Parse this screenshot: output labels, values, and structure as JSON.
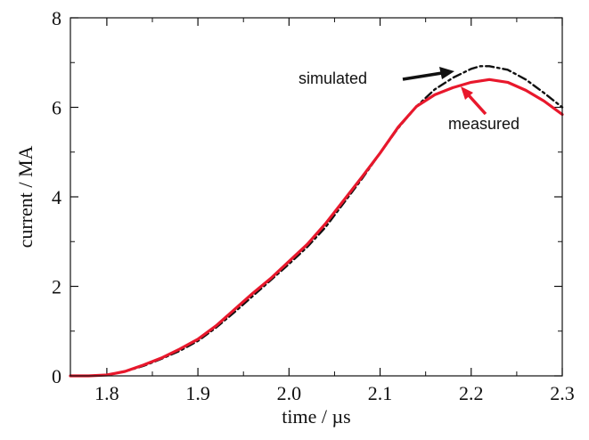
{
  "chart_data": {
    "type": "line",
    "title": "",
    "xlabel": "time / µs",
    "ylabel": "current / MA",
    "xlim": [
      1.76,
      2.3
    ],
    "ylim": [
      0,
      8
    ],
    "xticks": [
      1.8,
      1.9,
      2.0,
      2.1,
      2.2,
      2.3
    ],
    "xtick_labels": [
      "1.8",
      "1.9",
      "2.0",
      "2.1",
      "2.2",
      "2.3"
    ],
    "yticks": [
      0,
      2,
      4,
      6,
      8
    ],
    "ytick_labels": [
      "0",
      "2",
      "4",
      "6",
      "8"
    ],
    "grid": false,
    "legend": "none",
    "series": [
      {
        "name": "simulated",
        "color": "#111111",
        "style": "dash-dot",
        "x": [
          1.76,
          1.78,
          1.8,
          1.82,
          1.84,
          1.86,
          1.88,
          1.9,
          1.92,
          1.94,
          1.96,
          1.98,
          2.0,
          2.02,
          2.04,
          2.06,
          2.08,
          2.1,
          2.12,
          2.14,
          2.16,
          2.18,
          2.2,
          2.21,
          2.22,
          2.24,
          2.26,
          2.28,
          2.3
        ],
        "y": [
          0.0,
          0.0,
          0.02,
          0.1,
          0.22,
          0.38,
          0.56,
          0.78,
          1.08,
          1.42,
          1.78,
          2.14,
          2.5,
          2.88,
          3.32,
          3.86,
          4.4,
          4.98,
          5.54,
          6.02,
          6.4,
          6.66,
          6.86,
          6.92,
          6.92,
          6.84,
          6.62,
          6.32,
          6.0
        ]
      },
      {
        "name": "measured",
        "color": "#e8182c",
        "style": "solid",
        "x": [
          1.76,
          1.78,
          1.8,
          1.82,
          1.84,
          1.86,
          1.88,
          1.9,
          1.92,
          1.94,
          1.96,
          1.98,
          2.0,
          2.02,
          2.04,
          2.06,
          2.08,
          2.1,
          2.12,
          2.14,
          2.16,
          2.18,
          2.2,
          2.22,
          2.24,
          2.26,
          2.28,
          2.3
        ],
        "y": [
          0.0,
          0.0,
          0.02,
          0.1,
          0.24,
          0.4,
          0.6,
          0.82,
          1.12,
          1.48,
          1.84,
          2.18,
          2.56,
          2.94,
          3.4,
          3.92,
          4.44,
          4.98,
          5.56,
          6.02,
          6.28,
          6.44,
          6.56,
          6.62,
          6.56,
          6.38,
          6.14,
          5.84
        ]
      }
    ],
    "annotations": [
      {
        "text": "simulated",
        "series": "simulated"
      },
      {
        "text": "measured",
        "series": "measured"
      }
    ]
  }
}
